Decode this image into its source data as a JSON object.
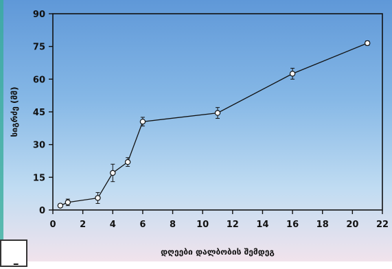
{
  "chart_data": {
    "type": "line",
    "xlabel": "დღეები დალბობის შემდეგ",
    "ylabel": "სიგრძე (მმ)",
    "xlim": [
      0,
      22
    ],
    "ylim": [
      0,
      90
    ],
    "xticks": [
      "0",
      "2",
      "4",
      "6",
      "8",
      "10",
      "12",
      "14",
      "16",
      "18",
      "20",
      "22"
    ],
    "yticks": [
      "0",
      "15",
      "30",
      "45",
      "60",
      "75",
      "90"
    ],
    "grid": false,
    "series": [
      {
        "x": [
          0.5,
          1,
          3,
          4,
          5,
          6,
          11,
          16,
          21
        ],
        "y": [
          2,
          3.5,
          5.5,
          17,
          22,
          40.5,
          44.5,
          62.5,
          76.5
        ],
        "error": [
          0.8,
          1.5,
          2.5,
          4,
          2,
          2,
          2.5,
          2.5,
          1
        ]
      }
    ],
    "colors": {
      "line": "#111111",
      "marker_fill": "#ffffff",
      "marker_stroke": "#111111"
    }
  },
  "corner": {
    "glyph": "ـ"
  }
}
